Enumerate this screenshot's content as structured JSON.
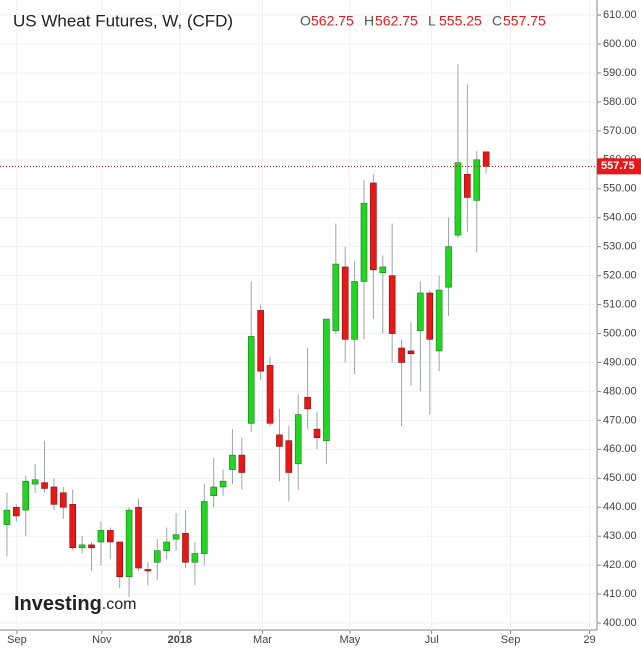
{
  "chart_data": {
    "type": "candlestick",
    "title": "US Wheat Futures, W, (CFD)",
    "ohlc_labels": [
      "O",
      "H",
      "L",
      "C"
    ],
    "brand": "Investing",
    "brand_suffix": ".com",
    "colors": {
      "up": "#22d522",
      "down": "#e81818",
      "wick": "#9aa4b0",
      "last_line": "#c00000"
    },
    "open": [
      434,
      440,
      439,
      448,
      448.5,
      447,
      445,
      441,
      426,
      427,
      428,
      432,
      428,
      416,
      440,
      418.5,
      421,
      425,
      429,
      431,
      421,
      424,
      444,
      447,
      453,
      458,
      469,
      508,
      489,
      465,
      463,
      455,
      478,
      467,
      463,
      501,
      523,
      498,
      518,
      552,
      521,
      520,
      495,
      494,
      501,
      514,
      494,
      516,
      534,
      555,
      546,
      562.75
    ],
    "high": [
      445,
      441,
      451,
      455,
      463,
      450,
      447,
      446,
      430,
      428,
      435,
      433,
      428,
      440,
      443,
      421,
      429,
      433,
      438,
      439,
      428,
      448,
      457,
      453,
      467,
      464,
      518,
      510,
      492,
      474,
      468,
      479,
      495,
      473,
      505,
      538,
      530,
      525,
      553,
      555,
      527,
      538,
      498,
      504,
      518,
      515,
      520,
      540,
      593,
      586,
      563,
      562.75
    ],
    "low": [
      423,
      435,
      430,
      445,
      445,
      439,
      436,
      425,
      424,
      418,
      420,
      422,
      412,
      409,
      418,
      413,
      415,
      422,
      425,
      419,
      413,
      420,
      440,
      444,
      448,
      446,
      466,
      484,
      468,
      449,
      442,
      446,
      467,
      460,
      455,
      500,
      490,
      486,
      498,
      505,
      500,
      490,
      468,
      482,
      480,
      472,
      487,
      506,
      533,
      535,
      528,
      555.25
    ],
    "close": [
      439,
      437,
      449,
      449.5,
      446.5,
      441,
      440,
      426,
      427,
      426,
      432,
      428,
      416,
      439,
      419,
      418,
      425,
      428,
      430.5,
      421,
      424,
      442,
      447,
      449,
      458,
      452,
      499,
      487,
      469,
      461,
      452,
      472,
      474,
      464,
      505,
      524,
      498,
      518,
      545,
      522,
      523,
      500,
      490,
      493,
      514,
      498,
      515,
      530,
      559,
      547,
      560,
      557.75
    ],
    "ylim": [
      397.6,
      615.2
    ],
    "yticks": [
      {
        "value": 400,
        "label": "400.00"
      },
      {
        "value": 410,
        "label": "410.00"
      },
      {
        "value": 420,
        "label": "420.00"
      },
      {
        "value": 430,
        "label": "430.00"
      },
      {
        "value": 440,
        "label": "440.00"
      },
      {
        "value": 450,
        "label": "450.00"
      },
      {
        "value": 460,
        "label": "460.00"
      },
      {
        "value": 470,
        "label": "470.00"
      },
      {
        "value": 480,
        "label": "480.00"
      },
      {
        "value": 490,
        "label": "490.00"
      },
      {
        "value": 500,
        "label": "500.00"
      },
      {
        "value": 510,
        "label": "510.00"
      },
      {
        "value": 520,
        "label": "520.00"
      },
      {
        "value": 530,
        "label": "530.00"
      },
      {
        "value": 540,
        "label": "540.00"
      },
      {
        "value": 550,
        "label": "550.00"
      },
      {
        "value": 560,
        "label": "560.00"
      },
      {
        "value": 570,
        "label": "570.00"
      },
      {
        "value": 580,
        "label": "580.00"
      },
      {
        "value": 590,
        "label": "590.00"
      },
      {
        "value": 600,
        "label": "600.00"
      },
      {
        "value": 610,
        "label": "610.00"
      }
    ],
    "xlim": [
      -0.74,
      62.8
    ],
    "xticks": [
      {
        "value": 1.06,
        "label": "Sep"
      },
      {
        "value": 10.1,
        "label": "Nov"
      },
      {
        "value": 18.4,
        "label": "2018"
      },
      {
        "value": 27.2,
        "label": "Mar"
      },
      {
        "value": 36.5,
        "label": "May"
      },
      {
        "value": 45.2,
        "label": "Jul"
      },
      {
        "value": 53.6,
        "label": "Sep"
      },
      {
        "value": 62,
        "label": "29"
      }
    ],
    "grid": true
  }
}
